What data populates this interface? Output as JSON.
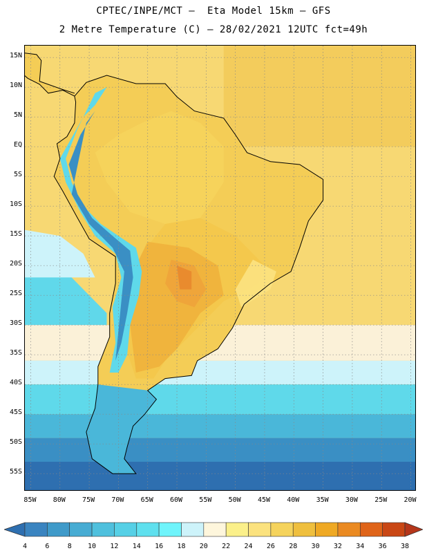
{
  "header": {
    "title_line1": "CPTEC/INPE/MCT –  Eta Model 15km – GFS",
    "title_line2": "2 Metre Temperature (C) – 28/02/2021 12UTC fct=49h"
  },
  "map": {
    "lon_range": [
      -86,
      -19
    ],
    "lat_range": [
      -58,
      17
    ],
    "lat_ticks": [
      {
        "lat": 15,
        "label": "15N"
      },
      {
        "lat": 10,
        "label": "10N"
      },
      {
        "lat": 5,
        "label": "5N"
      },
      {
        "lat": 0,
        "label": "EQ"
      },
      {
        "lat": -5,
        "label": "5S"
      },
      {
        "lat": -10,
        "label": "10S"
      },
      {
        "lat": -15,
        "label": "15S"
      },
      {
        "lat": -20,
        "label": "20S"
      },
      {
        "lat": -25,
        "label": "25S"
      },
      {
        "lat": -30,
        "label": "30S"
      },
      {
        "lat": -35,
        "label": "35S"
      },
      {
        "lat": -40,
        "label": "40S"
      },
      {
        "lat": -45,
        "label": "45S"
      },
      {
        "lat": -50,
        "label": "50S"
      },
      {
        "lat": -55,
        "label": "55S"
      }
    ],
    "lon_ticks": [
      {
        "lon": -85,
        "label": "85W"
      },
      {
        "lon": -80,
        "label": "80W"
      },
      {
        "lon": -75,
        "label": "75W"
      },
      {
        "lon": -70,
        "label": "70W"
      },
      {
        "lon": -65,
        "label": "65W"
      },
      {
        "lon": -60,
        "label": "60W"
      },
      {
        "lon": -55,
        "label": "55W"
      },
      {
        "lon": -50,
        "label": "50W"
      },
      {
        "lon": -45,
        "label": "45W"
      },
      {
        "lon": -40,
        "label": "40W"
      },
      {
        "lon": -35,
        "label": "35W"
      },
      {
        "lon": -30,
        "label": "30W"
      },
      {
        "lon": -25,
        "label": "25W"
      },
      {
        "lon": -20,
        "label": "20W"
      }
    ],
    "land_outline": [
      [
        -77.5,
        8.5
      ],
      [
        -75.5,
        10.8
      ],
      [
        -72,
        12
      ],
      [
        -67,
        10.6
      ],
      [
        -62,
        10.6
      ],
      [
        -60,
        8.4
      ],
      [
        -57,
        6
      ],
      [
        -52,
        4.8
      ],
      [
        -50,
        2
      ],
      [
        -48,
        -1
      ],
      [
        -44,
        -2.5
      ],
      [
        -39,
        -3
      ],
      [
        -35,
        -5.5
      ],
      [
        -35,
        -9
      ],
      [
        -37.5,
        -12.5
      ],
      [
        -39,
        -17
      ],
      [
        -40.5,
        -21
      ],
      [
        -44,
        -23
      ],
      [
        -48.5,
        -26.5
      ],
      [
        -50.5,
        -30.5
      ],
      [
        -53,
        -34
      ],
      [
        -56.5,
        -36
      ],
      [
        -57.5,
        -38.5
      ],
      [
        -62,
        -39
      ],
      [
        -65,
        -41
      ],
      [
        -63.5,
        -42.5
      ],
      [
        -65.5,
        -45
      ],
      [
        -67.5,
        -47
      ],
      [
        -68.5,
        -50.5
      ],
      [
        -69,
        -52.5
      ],
      [
        -67,
        -55
      ],
      [
        -71,
        -55
      ],
      [
        -74.5,
        -52.5
      ],
      [
        -75.5,
        -48
      ],
      [
        -74,
        -44
      ],
      [
        -73.5,
        -40
      ],
      [
        -73.5,
        -37
      ],
      [
        -71.5,
        -32
      ],
      [
        -71.5,
        -28
      ],
      [
        -70.5,
        -23
      ],
      [
        -70.5,
        -18.5
      ],
      [
        -75,
        -15.5
      ],
      [
        -77,
        -12
      ],
      [
        -79.5,
        -7.5
      ],
      [
        -81,
        -5
      ],
      [
        -80,
        -2
      ],
      [
        -80.5,
        0.5
      ],
      [
        -78.8,
        1.7
      ],
      [
        -77.5,
        4
      ],
      [
        -77.3,
        7.5
      ]
    ],
    "central_america": [
      [
        -77.5,
        8.5
      ],
      [
        -79.5,
        9.5
      ],
      [
        -82,
        9
      ],
      [
        -83.5,
        10.5
      ],
      [
        -85.5,
        11.5
      ],
      [
        -87.5,
        13.2
      ],
      [
        -90,
        14.2
      ],
      [
        -92,
        15
      ],
      [
        -92,
        18
      ],
      [
        -88,
        16
      ],
      [
        -84,
        15.5
      ],
      [
        -83.2,
        14.5
      ],
      [
        -83.5,
        11
      ],
      [
        -79.5,
        9.6
      ],
      [
        -77.5,
        9
      ]
    ],
    "temperature_zones": [
      {
        "temp": 26,
        "color": "#f5d35c",
        "poly": [
          [
            -70,
            2
          ],
          [
            -66,
            4
          ],
          [
            -61,
            6
          ],
          [
            -56,
            4
          ],
          [
            -52,
            0
          ],
          [
            -52,
            -6
          ],
          [
            -56,
            -12
          ],
          [
            -62,
            -13
          ],
          [
            -68,
            -11
          ],
          [
            -72,
            -6
          ],
          [
            -74,
            -1
          ]
        ]
      },
      {
        "temp": 28,
        "color": "#f3c74c",
        "poly": [
          [
            -62,
            -13
          ],
          [
            -56,
            -12
          ],
          [
            -50,
            -15
          ],
          [
            -45,
            -20
          ],
          [
            -46,
            -23
          ],
          [
            -52,
            -26
          ],
          [
            -58,
            -32
          ],
          [
            -62,
            -36
          ],
          [
            -64,
            -39
          ],
          [
            -67,
            -39
          ],
          [
            -69,
            -33
          ],
          [
            -68,
            -25
          ],
          [
            -66,
            -18
          ]
        ]
      },
      {
        "temp": 30,
        "color": "#efb33c",
        "poly": [
          [
            -65,
            -16
          ],
          [
            -58,
            -17
          ],
          [
            -53,
            -20
          ],
          [
            -52,
            -25
          ],
          [
            -56,
            -28
          ],
          [
            -60,
            -34
          ],
          [
            -63,
            -37
          ],
          [
            -67,
            -38
          ],
          [
            -68,
            -30
          ],
          [
            -68,
            -22
          ]
        ]
      },
      {
        "temp": 32,
        "color": "#eea43a",
        "poly": [
          [
            -61,
            -19
          ],
          [
            -57,
            -20
          ],
          [
            -55,
            -24
          ],
          [
            -57,
            -27
          ],
          [
            -60,
            -26
          ],
          [
            -62,
            -23
          ]
        ]
      },
      {
        "temp": 34,
        "color": "#e8892d",
        "poly": [
          [
            -60,
            -20
          ],
          [
            -57.5,
            -21
          ],
          [
            -57.5,
            -24
          ],
          [
            -59.5,
            -24
          ]
        ]
      },
      {
        "temp": 24,
        "color": "#fbe27e",
        "poly": [
          [
            -47,
            -19
          ],
          [
            -43,
            -21
          ],
          [
            -44,
            -24
          ],
          [
            -49,
            -27
          ],
          [
            -50,
            -24
          ]
        ]
      }
    ],
    "andes_cold": [
      {
        "temp": 18,
        "color": "#5fd9ea",
        "poly": [
          [
            -76,
            5
          ],
          [
            -74,
            7
          ],
          [
            -72,
            10
          ],
          [
            -74,
            9
          ],
          [
            -77,
            3
          ],
          [
            -79,
            -2
          ],
          [
            -78,
            -6
          ],
          [
            -76,
            -10
          ],
          [
            -73,
            -13
          ],
          [
            -70,
            -15
          ],
          [
            -67,
            -17
          ],
          [
            -66,
            -21
          ],
          [
            -66.5,
            -25
          ],
          [
            -68,
            -30
          ],
          [
            -68.5,
            -35
          ],
          [
            -70,
            -38
          ],
          [
            -71.5,
            -38
          ],
          [
            -70.5,
            -33
          ],
          [
            -71,
            -27
          ],
          [
            -69.5,
            -22
          ],
          [
            -70.5,
            -18
          ],
          [
            -74,
            -15
          ],
          [
            -76.5,
            -11
          ],
          [
            -79,
            -6
          ],
          [
            -80,
            -2
          ]
        ]
      },
      {
        "temp": 12,
        "color": "#3a8fc4",
        "poly": [
          [
            -75.5,
            4
          ],
          [
            -74,
            6
          ],
          [
            -76.5,
            2
          ],
          [
            -78.5,
            -3
          ],
          [
            -77,
            -8
          ],
          [
            -74.5,
            -12
          ],
          [
            -71,
            -15
          ],
          [
            -68,
            -17.5
          ],
          [
            -67.5,
            -22
          ],
          [
            -68.5,
            -28
          ],
          [
            -69.5,
            -33
          ],
          [
            -70.5,
            -36
          ],
          [
            -70,
            -31
          ],
          [
            -69.5,
            -26
          ],
          [
            -69,
            -21
          ],
          [
            -71,
            -17
          ],
          [
            -75,
            -13
          ],
          [
            -78,
            -8
          ]
        ]
      }
    ],
    "ocean_bands": [
      {
        "temp": 22,
        "color": "#fbf1d8",
        "lat_top": -30,
        "lat_bottom": -36
      },
      {
        "temp": 18,
        "color": "#cdf3fa",
        "lat_top": -36,
        "lat_bottom": -40
      },
      {
        "temp": 14,
        "color": "#5fd9ea",
        "lat_top": -40,
        "lat_bottom": -45
      },
      {
        "temp": 12,
        "color": "#4ab7d9",
        "lat_top": -45,
        "lat_bottom": -49
      },
      {
        "temp": 8,
        "color": "#3a8fc4",
        "lat_top": -49,
        "lat_bottom": -53
      },
      {
        "temp": 6,
        "color": "#2e6fb0",
        "lat_top": -53,
        "lat_bottom": -58
      }
    ],
    "colors": {
      "tropical_ocean": "#f7d873",
      "north_atlantic": "#f3cc5c",
      "land_base": "#f4cd56",
      "pacific_south": "#60d8ea",
      "patagonia": "#4ab7d9",
      "grid": "#888888",
      "coast": "#000000"
    }
  },
  "colorbar": {
    "values": [
      4,
      6,
      8,
      10,
      12,
      14,
      16,
      18,
      20,
      22,
      24,
      26,
      28,
      30,
      32,
      34,
      36,
      38
    ],
    "colors": [
      "#2e6fb0",
      "#3a84c0",
      "#3f9ac9",
      "#47acd3",
      "#4fc0dd",
      "#56d0e6",
      "#5fe0ee",
      "#6ff4fb",
      "#cdf3fa",
      "#fef6dc",
      "#fbf08a",
      "#fbe27e",
      "#f5d35c",
      "#efbf3e",
      "#efa924",
      "#ea8a22",
      "#df6419",
      "#c94715",
      "#b5361a"
    ]
  }
}
